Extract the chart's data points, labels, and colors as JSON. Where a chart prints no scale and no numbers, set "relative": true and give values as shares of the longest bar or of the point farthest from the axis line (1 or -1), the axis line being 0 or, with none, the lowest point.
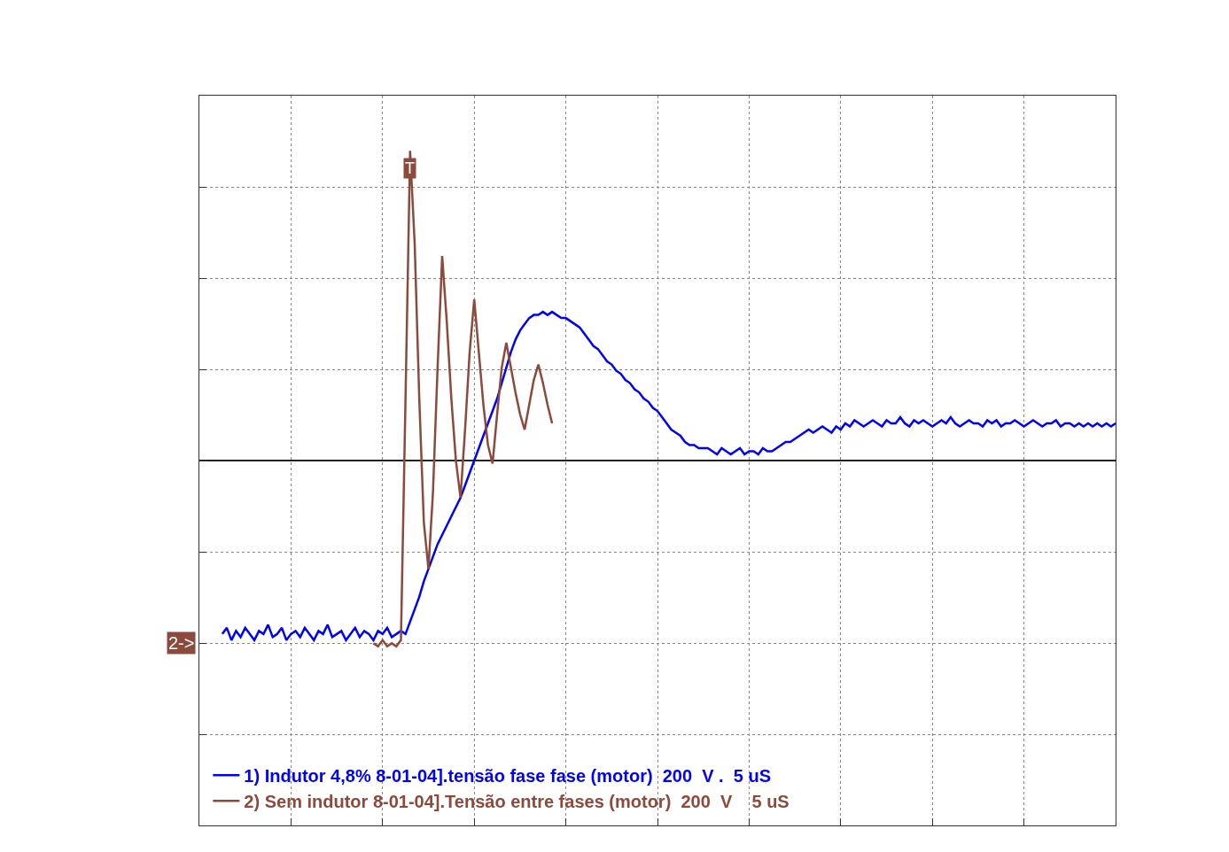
{
  "chart_data": {
    "type": "line",
    "relative": true,
    "grid": true,
    "legend": "bottom left",
    "categories": [
      null,
      null,
      null,
      null,
      null,
      null,
      null,
      null,
      null,
      null,
      null,
      null,
      null,
      null,
      null,
      null,
      null,
      null,
      null,
      null,
      null,
      null,
      null,
      null,
      null,
      null,
      null,
      null,
      null,
      null,
      null,
      null,
      null,
      null,
      null,
      null,
      null,
      null,
      null,
      null,
      null,
      null,
      null,
      null,
      null,
      null,
      null,
      null,
      null,
      null,
      null,
      null,
      null,
      null,
      null,
      null,
      null,
      null,
      null,
      null,
      null,
      null,
      null,
      null,
      null,
      null,
      null,
      null,
      null,
      null,
      null,
      null,
      null,
      null,
      null,
      null,
      null,
      null,
      null,
      null,
      null,
      null,
      null,
      null,
      null,
      null,
      null,
      null,
      null,
      null,
      null,
      null,
      null,
      null,
      null,
      null,
      null,
      null,
      null,
      null,
      null,
      null,
      null,
      null,
      null,
      null,
      null,
      null,
      null,
      null,
      null,
      null,
      null,
      null,
      null,
      null,
      null,
      null,
      null,
      null,
      null,
      null,
      null,
      null,
      null,
      null,
      null,
      null,
      null,
      null,
      null,
      null,
      null,
      null,
      null,
      null,
      null,
      null,
      null,
      null,
      null,
      null,
      null,
      null,
      null,
      null,
      null,
      null,
      null,
      null,
      null,
      null,
      null,
      null,
      null,
      null,
      null,
      null,
      null,
      null,
      null,
      null,
      null,
      null,
      null,
      null,
      null,
      null,
      null,
      null,
      null,
      null,
      null,
      null,
      null,
      null,
      null,
      null,
      null,
      null,
      null,
      null,
      null,
      null,
      null,
      null,
      null,
      null,
      null,
      null,
      null,
      null,
      null,
      null,
      null,
      null,
      null,
      null,
      null,
      null,
      null
    ],
    "annotations": [
      "T",
      "2->"
    ],
    "series": [
      {
        "name": "1) Indutor 4,8% 8-01-04].tensão fase fase (motor)  200  V .  5 uS",
        "color": "#0000ff",
        "values": [
          null,
          null,
          null,
          null,
          null,
          -0.56,
          -0.54,
          -0.58,
          -0.55,
          -0.57,
          -0.54,
          -0.56,
          -0.58,
          -0.55,
          -0.56,
          -0.53,
          -0.57,
          -0.56,
          -0.54,
          -0.58,
          -0.56,
          -0.55,
          -0.57,
          -0.54,
          -0.56,
          -0.58,
          -0.55,
          -0.56,
          -0.53,
          -0.57,
          -0.56,
          -0.55,
          -0.58,
          -0.56,
          -0.54,
          -0.57,
          -0.55,
          -0.56,
          -0.58,
          -0.55,
          -0.56,
          -0.54,
          -0.57,
          -0.56,
          -0.55,
          -0.56,
          -0.52,
          -0.48,
          -0.44,
          -0.39,
          -0.35,
          -0.31,
          -0.27,
          -0.24,
          -0.21,
          -0.18,
          -0.15,
          -0.12,
          -0.08,
          -0.04,
          0.0,
          0.04,
          0.08,
          0.12,
          0.16,
          0.2,
          0.25,
          0.3,
          0.35,
          0.39,
          0.42,
          0.44,
          0.46,
          0.47,
          0.47,
          0.48,
          0.47,
          0.48,
          0.47,
          0.46,
          0.46,
          0.45,
          0.44,
          0.43,
          0.41,
          0.39,
          0.37,
          0.36,
          0.34,
          0.32,
          0.31,
          0.29,
          0.28,
          0.26,
          0.25,
          0.23,
          0.22,
          0.2,
          0.19,
          0.17,
          0.16,
          0.14,
          0.12,
          0.1,
          0.09,
          0.08,
          0.06,
          0.05,
          0.05,
          0.04,
          0.04,
          0.04,
          0.03,
          0.02,
          0.04,
          0.03,
          0.02,
          0.03,
          0.04,
          0.02,
          0.03,
          0.03,
          0.02,
          0.04,
          0.03,
          0.03,
          0.04,
          0.05,
          0.06,
          0.06,
          0.07,
          0.08,
          0.09,
          0.1,
          0.09,
          0.1,
          0.11,
          0.1,
          0.09,
          0.11,
          0.1,
          0.12,
          0.11,
          0.13,
          0.12,
          0.11,
          0.12,
          0.13,
          0.12,
          0.11,
          0.13,
          0.12,
          0.12,
          0.14,
          0.12,
          0.11,
          0.13,
          0.12,
          0.13,
          0.12,
          0.11,
          0.12,
          0.13,
          0.12,
          0.14,
          0.12,
          0.11,
          0.12,
          0.13,
          0.12,
          0.12,
          0.11,
          0.13,
          0.12,
          0.13,
          0.11,
          0.12,
          0.12,
          0.13,
          0.12,
          0.11,
          0.12,
          0.13,
          0.12,
          0.11,
          0.12,
          0.12,
          0.13,
          0.11,
          0.12,
          0.12,
          0.11,
          0.12,
          0.11,
          0.12,
          0.11,
          0.12,
          0.11,
          0.12,
          0.11,
          0.12
        ]
      },
      {
        "name": "2) Sem indutor 8-01-04].Tensão entre fases (motor)  200  V    5 uS",
        "color": "#8b4a3c",
        "values": [
          null,
          null,
          null,
          null,
          null,
          null,
          null,
          null,
          null,
          null,
          null,
          null,
          null,
          null,
          null,
          null,
          null,
          null,
          null,
          null,
          null,
          null,
          null,
          null,
          null,
          null,
          null,
          null,
          null,
          null,
          null,
          null,
          null,
          null,
          null,
          null,
          null,
          null,
          -0.59,
          -0.6,
          -0.58,
          -0.6,
          -0.59,
          -0.6,
          -0.58,
          0.2,
          1.0,
          0.7,
          0.2,
          -0.2,
          -0.35,
          -0.1,
          0.3,
          0.66,
          0.45,
          0.2,
          0.0,
          -0.12,
          0.1,
          0.35,
          0.52,
          0.35,
          0.18,
          0.05,
          -0.01,
          0.15,
          0.3,
          0.38,
          0.3,
          0.22,
          0.15,
          0.1,
          0.18,
          0.26,
          0.31,
          0.25,
          0.18,
          0.12,
          null,
          null,
          null,
          null,
          null,
          null,
          null,
          null,
          null,
          null,
          null,
          null,
          null,
          null,
          null,
          null,
          null,
          null,
          null,
          null,
          null,
          null,
          null,
          null,
          null,
          null,
          null,
          null,
          null,
          null,
          null,
          null,
          null,
          null,
          null,
          null,
          null,
          null,
          null,
          null,
          null,
          null,
          null,
          null,
          null,
          null,
          null,
          null,
          null,
          null,
          null,
          null,
          null,
          null,
          null,
          null,
          null,
          null,
          null,
          null,
          null,
          null,
          null,
          null,
          null,
          null,
          null,
          null,
          null,
          null,
          null,
          null,
          null,
          null,
          null,
          null,
          null,
          null,
          null,
          null,
          null,
          null,
          null,
          null,
          null,
          null,
          null,
          null,
          null,
          null,
          null,
          null,
          null,
          null,
          null,
          null,
          null,
          null,
          null,
          null,
          null,
          null,
          null,
          null,
          null,
          null,
          null,
          null,
          null,
          null,
          null,
          null,
          null,
          null,
          null,
          null,
          null,
          null,
          null,
          null,
          null,
          null,
          null
        ]
      }
    ]
  }
}
